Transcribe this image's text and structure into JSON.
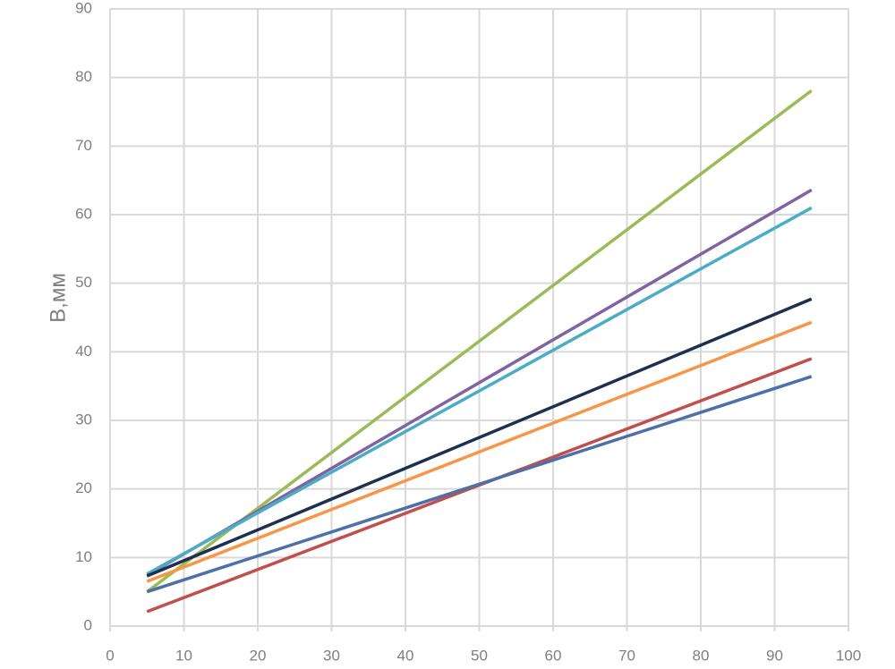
{
  "chart_data": {
    "type": "line",
    "y_label": "B,мм",
    "x": [
      5,
      95
    ],
    "series": [
      {
        "color": "#9bbb59",
        "values": [
          5.0,
          78.1
        ]
      },
      {
        "color": "#8064a2",
        "values": [
          7.4,
          63.6
        ]
      },
      {
        "color": "#4bacc6",
        "values": [
          7.6,
          61.0
        ]
      },
      {
        "color": "#1f2f4f",
        "values": [
          7.3,
          47.7
        ]
      },
      {
        "color": "#f79646",
        "values": [
          6.5,
          44.3
        ]
      },
      {
        "color": "#c0504d",
        "values": [
          2.1,
          39.0
        ]
      },
      {
        "color": "#4f6fa8",
        "values": [
          5.0,
          36.4
        ]
      }
    ],
    "xlim": [
      0,
      100
    ],
    "xticks": [
      0,
      10,
      20,
      30,
      40,
      50,
      60,
      70,
      80,
      90,
      100
    ],
    "ylim": [
      0,
      90
    ],
    "yticks": [
      0,
      10,
      20,
      30,
      40,
      50,
      60,
      70,
      80,
      90
    ],
    "grid": true
  }
}
